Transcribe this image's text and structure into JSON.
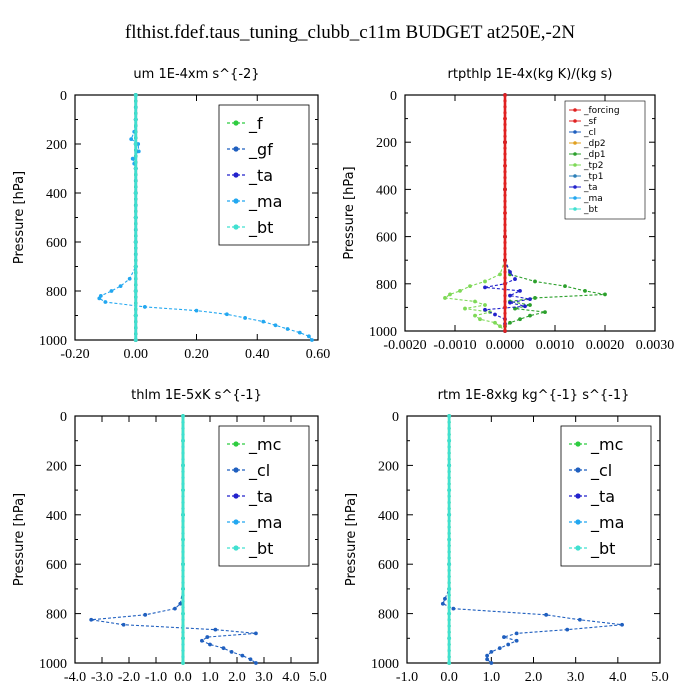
{
  "figure_title": "flthist.fdef.taus_tuning_clubb_c11m  BUDGET at250E,-2N",
  "chart_data": [
    {
      "type": "line",
      "title": "um   1E-4xm s^{-2}",
      "ylabel": "Pressure [hPa]",
      "xlim": [
        -0.2,
        0.6
      ],
      "ylim": [
        0,
        1000
      ],
      "y_inverted": true,
      "xticks": [
        "-0.20",
        "0.00",
        "0.20",
        "0.40",
        "0.60"
      ],
      "xtick_values": [
        -0.2,
        0.0,
        0.2,
        0.4,
        0.6
      ],
      "yticks": [
        "0",
        "200",
        "400",
        "600",
        "800",
        "1000"
      ],
      "legend": {
        "placement": "top-right",
        "size": "large",
        "entries": [
          "_f",
          "_gf",
          "_ta",
          "_ma",
          "_bt"
        ]
      },
      "series": [
        {
          "name": "_ma",
          "color": "#22a7f0",
          "pressure": [
            0,
            50,
            100,
            150,
            180,
            200,
            230,
            260,
            280,
            300,
            350,
            400,
            450,
            500,
            550,
            600,
            650,
            700,
            750,
            780,
            800,
            820,
            830,
            845,
            865,
            880,
            895,
            910,
            925,
            940,
            955,
            970,
            985,
            1000
          ],
          "values": [
            0.0,
            0.0,
            0.0,
            -0.005,
            -0.015,
            0.008,
            0.01,
            -0.01,
            -0.005,
            0.0,
            0.0,
            0.0,
            0.0,
            0.0,
            0.0,
            0.0,
            0.0,
            0.0,
            -0.02,
            -0.05,
            -0.08,
            -0.115,
            -0.12,
            -0.1,
            0.03,
            0.2,
            0.3,
            0.36,
            0.42,
            0.46,
            0.5,
            0.54,
            0.57,
            0.58
          ]
        },
        {
          "name": "_gf",
          "color": "#1f5fbf",
          "pressure": [
            0,
            100,
            200,
            300,
            400,
            500,
            600,
            700,
            800,
            900,
            1000
          ],
          "values": [
            0,
            0,
            0,
            0,
            0,
            0,
            0,
            0,
            0,
            0,
            0
          ]
        },
        {
          "name": "_ta",
          "color": "#2222cc",
          "pressure": [
            0,
            100,
            200,
            300,
            400,
            500,
            600,
            700,
            800,
            900,
            1000
          ],
          "values": [
            0,
            0,
            0,
            0,
            0,
            0,
            0,
            0,
            0,
            0,
            0
          ]
        },
        {
          "name": "_f",
          "color": "#2ecc40",
          "pressure": [
            0,
            100,
            200,
            300,
            400,
            500,
            600,
            700,
            800,
            900,
            1000
          ],
          "values": [
            0,
            0,
            0,
            0,
            0,
            0,
            0,
            0,
            0,
            0,
            0
          ]
        },
        {
          "name": "_bt",
          "color": "#40e0d0",
          "pressure": [
            0,
            100,
            200,
            300,
            400,
            500,
            600,
            700,
            800,
            900,
            1000
          ],
          "values": [
            0,
            0,
            0,
            0,
            0,
            0,
            0,
            0,
            0,
            0,
            0
          ]
        }
      ]
    },
    {
      "type": "line",
      "title": "rtpthlp   1E-4x(kg K)/(kg s)",
      "ylabel": "Pressure [hPa]",
      "xlim": [
        -0.002,
        0.003
      ],
      "ylim": [
        0,
        1000
      ],
      "y_inverted": true,
      "xticks": [
        "-0.0020",
        "-0.0010",
        "0.0000",
        "0.0010",
        "0.0020",
        "0.0030"
      ],
      "xtick_values": [
        -0.002,
        -0.001,
        0.0,
        0.001,
        0.002,
        0.003
      ],
      "yticks": [
        "0",
        "200",
        "400",
        "600",
        "800",
        "1000"
      ],
      "legend": {
        "placement": "top-right",
        "size": "small",
        "entries": [
          "_forcing",
          "_sf",
          "_cl",
          "_dp2",
          "_dp1",
          "_tp2",
          "_tp1",
          "_ta",
          "_ma",
          "_bt"
        ]
      },
      "series": [
        {
          "name": "_dp1",
          "color": "#2ca02c",
          "pressure": [
            0,
            200,
            400,
            600,
            700,
            760,
            790,
            810,
            830,
            845,
            860,
            875,
            890,
            905,
            920,
            935,
            950,
            965,
            980,
            1000
          ],
          "values": [
            0,
            0,
            0,
            0,
            0,
            0.0001,
            0.0006,
            0.0012,
            0.0016,
            0.002,
            0.0006,
            0.0001,
            0.0005,
            0.0002,
            0.0008,
            0.0005,
            0.0003,
            0.0001,
            0.0,
            0.0
          ]
        },
        {
          "name": "_tp2",
          "color": "#7ed957",
          "pressure": [
            0,
            200,
            400,
            600,
            700,
            760,
            790,
            810,
            830,
            845,
            860,
            875,
            890,
            905,
            920,
            935,
            950,
            965,
            980,
            1000
          ],
          "values": [
            0,
            0,
            0,
            0,
            0,
            -0.0001,
            -0.0004,
            -0.0007,
            -0.0009,
            -0.0011,
            -0.0012,
            -0.0006,
            -0.0004,
            -0.0008,
            -0.0003,
            -0.0006,
            -0.0005,
            -0.0002,
            -0.0001,
            0.0
          ]
        },
        {
          "name": "_ta",
          "color": "#2222cc",
          "pressure": [
            0,
            200,
            400,
            600,
            700,
            750,
            780,
            800,
            815,
            830,
            850,
            865,
            880,
            895,
            910,
            930,
            950,
            970,
            1000
          ],
          "values": [
            0,
            0,
            0,
            0,
            0,
            0.0001,
            0.0002,
            0.0,
            -0.0004,
            0.0003,
            0.0001,
            0.0005,
            0.0001,
            0.0004,
            -0.0004,
            -0.0002,
            0.0,
            0.0,
            0.0
          ]
        },
        {
          "name": "_forcing",
          "color": "#e02020",
          "pressure": [
            0,
            100,
            200,
            300,
            400,
            500,
            600,
            700,
            800,
            900,
            1000
          ],
          "values": [
            0,
            0,
            0,
            0,
            0,
            0,
            0,
            0,
            0,
            0,
            0
          ]
        }
      ]
    },
    {
      "type": "line",
      "title": "thlm   1E-5xK s^{-1}",
      "ylabel": "Pressure [hPa]",
      "xlim": [
        -4.0,
        5.0
      ],
      "ylim": [
        0,
        1000
      ],
      "y_inverted": true,
      "xticks": [
        "-4.0",
        "-3.0",
        "-2.0",
        "-1.0",
        "0.0",
        "1.0",
        "2.0",
        "3.0",
        "4.0",
        "5.0"
      ],
      "xtick_values": [
        -4,
        -3,
        -2,
        -1,
        0,
        1,
        2,
        3,
        4,
        5
      ],
      "yticks": [
        "0",
        "200",
        "400",
        "600",
        "800",
        "1000"
      ],
      "legend": {
        "placement": "top-right",
        "size": "large",
        "entries": [
          "_mc",
          "_cl",
          "_ta",
          "_ma",
          "_bt"
        ]
      },
      "series": [
        {
          "name": "_cl",
          "color": "#1f5fbf",
          "pressure": [
            0,
            200,
            400,
            600,
            700,
            760,
            780,
            805,
            825,
            845,
            865,
            880,
            895,
            910,
            925,
            940,
            955,
            970,
            985,
            1000
          ],
          "values": [
            0,
            0,
            0,
            0,
            0,
            -0.1,
            -0.3,
            -1.4,
            -3.4,
            -2.2,
            1.2,
            2.7,
            0.9,
            0.7,
            1.0,
            1.5,
            1.8,
            2.2,
            2.5,
            2.7
          ]
        },
        {
          "name": "_mc",
          "color": "#2ecc40",
          "pressure": [
            0,
            100,
            200,
            300,
            400,
            500,
            600,
            700,
            800,
            900,
            1000
          ],
          "values": [
            0,
            0,
            0,
            0,
            0,
            0,
            0,
            0,
            0,
            0,
            0
          ]
        },
        {
          "name": "_bt",
          "color": "#40e0d0",
          "pressure": [
            0,
            100,
            200,
            300,
            400,
            500,
            600,
            700,
            800,
            900,
            1000
          ],
          "values": [
            0,
            0,
            0,
            0,
            0,
            0,
            0,
            0,
            0,
            0,
            0
          ]
        }
      ]
    },
    {
      "type": "line",
      "title": "rtm   1E-8xkg kg^{-1} s^{-1}",
      "ylabel": "Pressure [hPa]",
      "xlim": [
        -1.0,
        5.0
      ],
      "ylim": [
        0,
        1000
      ],
      "y_inverted": true,
      "xticks": [
        "-1.0",
        "0.0",
        "1.0",
        "2.0",
        "3.0",
        "4.0",
        "5.0"
      ],
      "xtick_values": [
        -1,
        0,
        1,
        2,
        3,
        4,
        5
      ],
      "yticks": [
        "0",
        "200",
        "400",
        "600",
        "800",
        "1000"
      ],
      "legend": {
        "placement": "top-right",
        "size": "large",
        "entries": [
          "_mc",
          "_cl",
          "_ta",
          "_ma",
          "_bt"
        ]
      },
      "series": [
        {
          "name": "_cl",
          "color": "#1f5fbf",
          "pressure": [
            0,
            200,
            400,
            600,
            700,
            740,
            760,
            780,
            805,
            825,
            845,
            865,
            880,
            895,
            910,
            925,
            940,
            955,
            970,
            985,
            1000
          ],
          "values": [
            0,
            0,
            0,
            0,
            0,
            -0.1,
            -0.15,
            0.1,
            2.3,
            3.1,
            4.1,
            2.8,
            1.6,
            1.3,
            1.6,
            1.4,
            1.2,
            1.0,
            0.9,
            0.9,
            1.0
          ]
        },
        {
          "name": "_mc",
          "color": "#2ecc40",
          "pressure": [
            0,
            100,
            200,
            300,
            400,
            500,
            600,
            700,
            800,
            900,
            1000
          ],
          "values": [
            0,
            0,
            0,
            0,
            0,
            0,
            0,
            0,
            0,
            0,
            0
          ]
        },
        {
          "name": "_bt",
          "color": "#40e0d0",
          "pressure": [
            0,
            100,
            200,
            300,
            400,
            500,
            600,
            700,
            800,
            900,
            1000
          ],
          "values": [
            0,
            0,
            0,
            0,
            0,
            0,
            0,
            0,
            0,
            0,
            0
          ]
        }
      ]
    }
  ]
}
